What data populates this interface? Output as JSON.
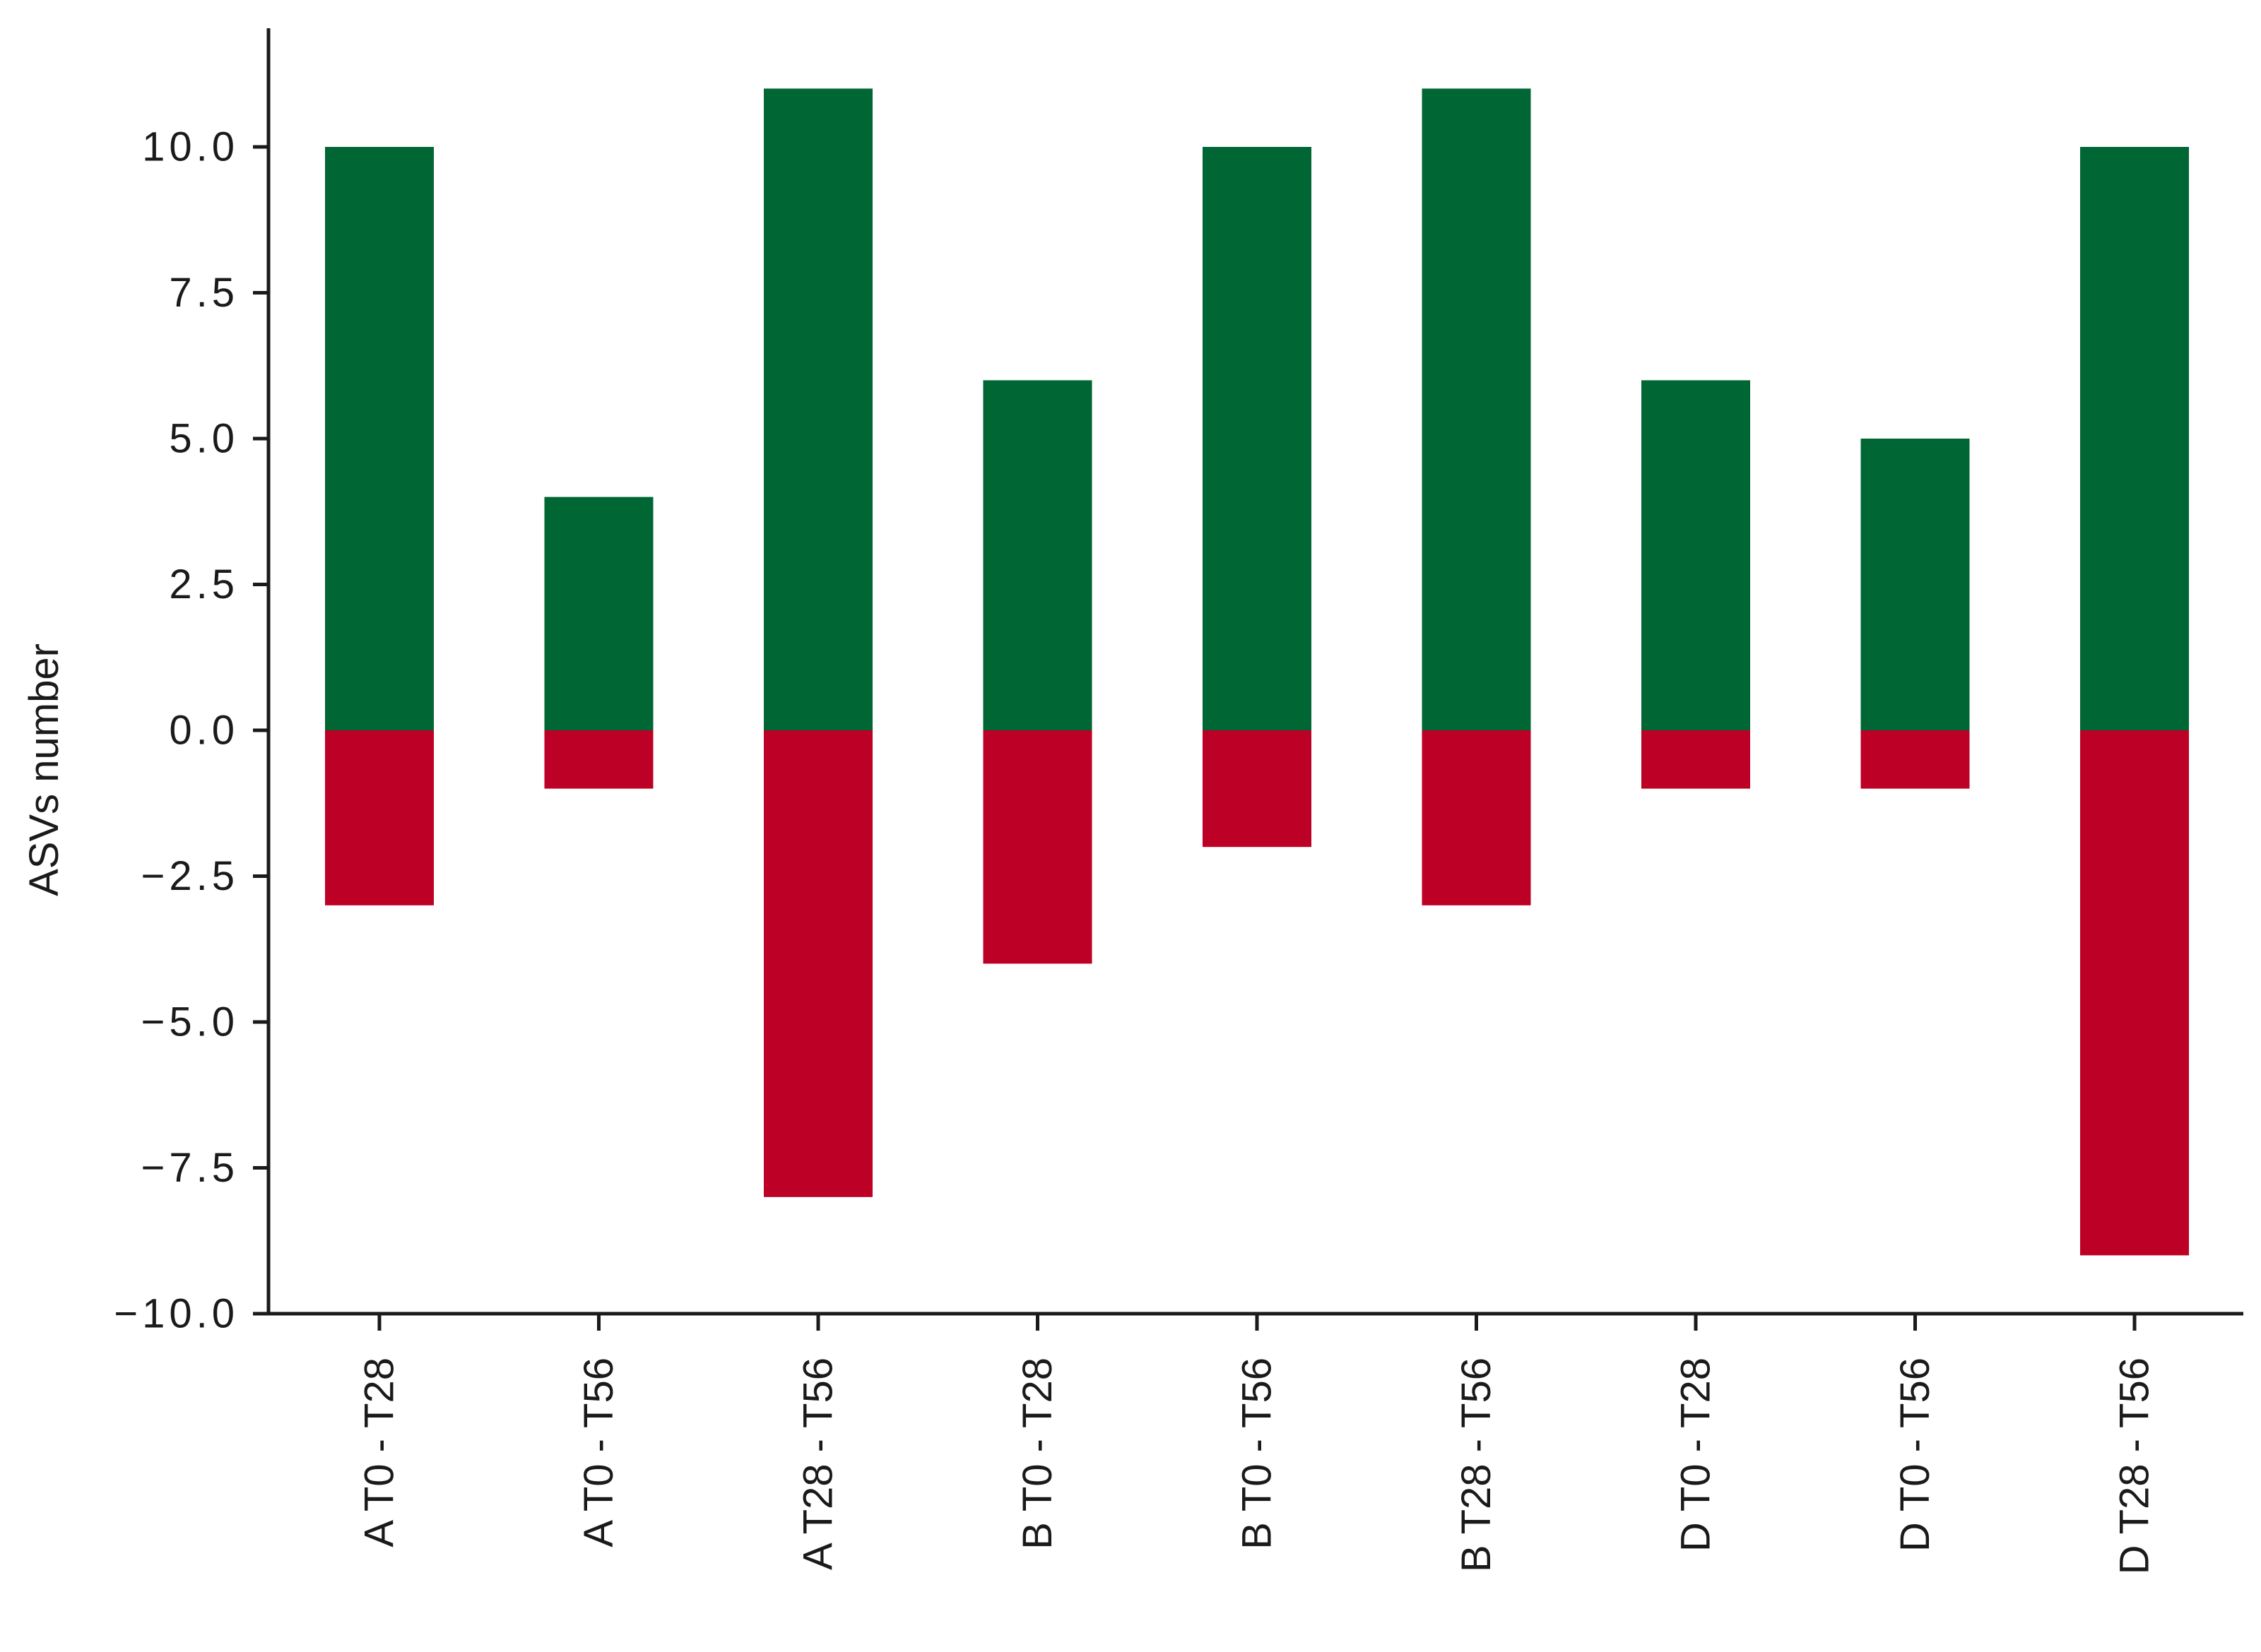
{
  "chart_data": {
    "type": "bar",
    "stacked": true,
    "title": "",
    "xlabel": "",
    "ylabel": "ASVs number",
    "ylim": [
      -10,
      12
    ],
    "yticks": [
      -10.0,
      -7.5,
      -5.0,
      -2.5,
      0.0,
      2.5,
      5.0,
      7.5,
      10.0
    ],
    "ytick_labels": [
      "−10.0",
      "−7.5",
      "−5.0",
      "−2.5",
      "0.0",
      "2.5",
      "5.0",
      "7.5",
      "10.0"
    ],
    "grid": false,
    "legend": "none",
    "categories": [
      "A T0 - T28",
      "A T0 - T56",
      "A T28 - T56",
      "B T0 - T28",
      "B T0 - T56",
      "B T28 - T56",
      "D T0 - T28",
      "D T0 - T56",
      "D T28 - T56"
    ],
    "series": [
      {
        "color": "#006633",
        "values": [
          10,
          4,
          11,
          6,
          10,
          11,
          6,
          5,
          10
        ]
      },
      {
        "color": "#bd0026",
        "values": [
          -3,
          -1,
          -8,
          -4,
          -2,
          -3,
          -1,
          -1,
          -9
        ]
      }
    ]
  }
}
